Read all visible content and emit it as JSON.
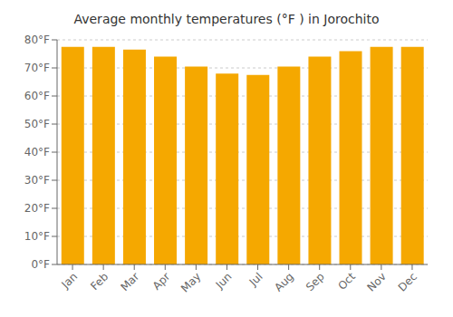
{
  "chart_data": {
    "type": "bar",
    "title": "Average monthly temperatures (°F ) in Jorochito",
    "categories": [
      "Jan",
      "Feb",
      "Mar",
      "Apr",
      "May",
      "Jun",
      "Jul",
      "Aug",
      "Sep",
      "Oct",
      "Nov",
      "Dec"
    ],
    "values": [
      77.5,
      77.5,
      76.5,
      74.0,
      70.5,
      68.0,
      67.5,
      70.5,
      74.0,
      76.0,
      77.5,
      77.5
    ],
    "color": "#F5A800",
    "ylim": [
      0,
      80
    ],
    "yticks": [
      {
        "value": 0,
        "label": "0°F"
      },
      {
        "value": 10,
        "label": "10°F"
      },
      {
        "value": 20,
        "label": "20°F"
      },
      {
        "value": 30,
        "label": "30°F"
      },
      {
        "value": 40,
        "label": "40°F"
      },
      {
        "value": 50,
        "label": "50°F"
      },
      {
        "value": 60,
        "label": "60°F"
      },
      {
        "value": 70,
        "label": "70°F"
      },
      {
        "value": 80,
        "label": "80°F"
      }
    ],
    "grid": true
  }
}
